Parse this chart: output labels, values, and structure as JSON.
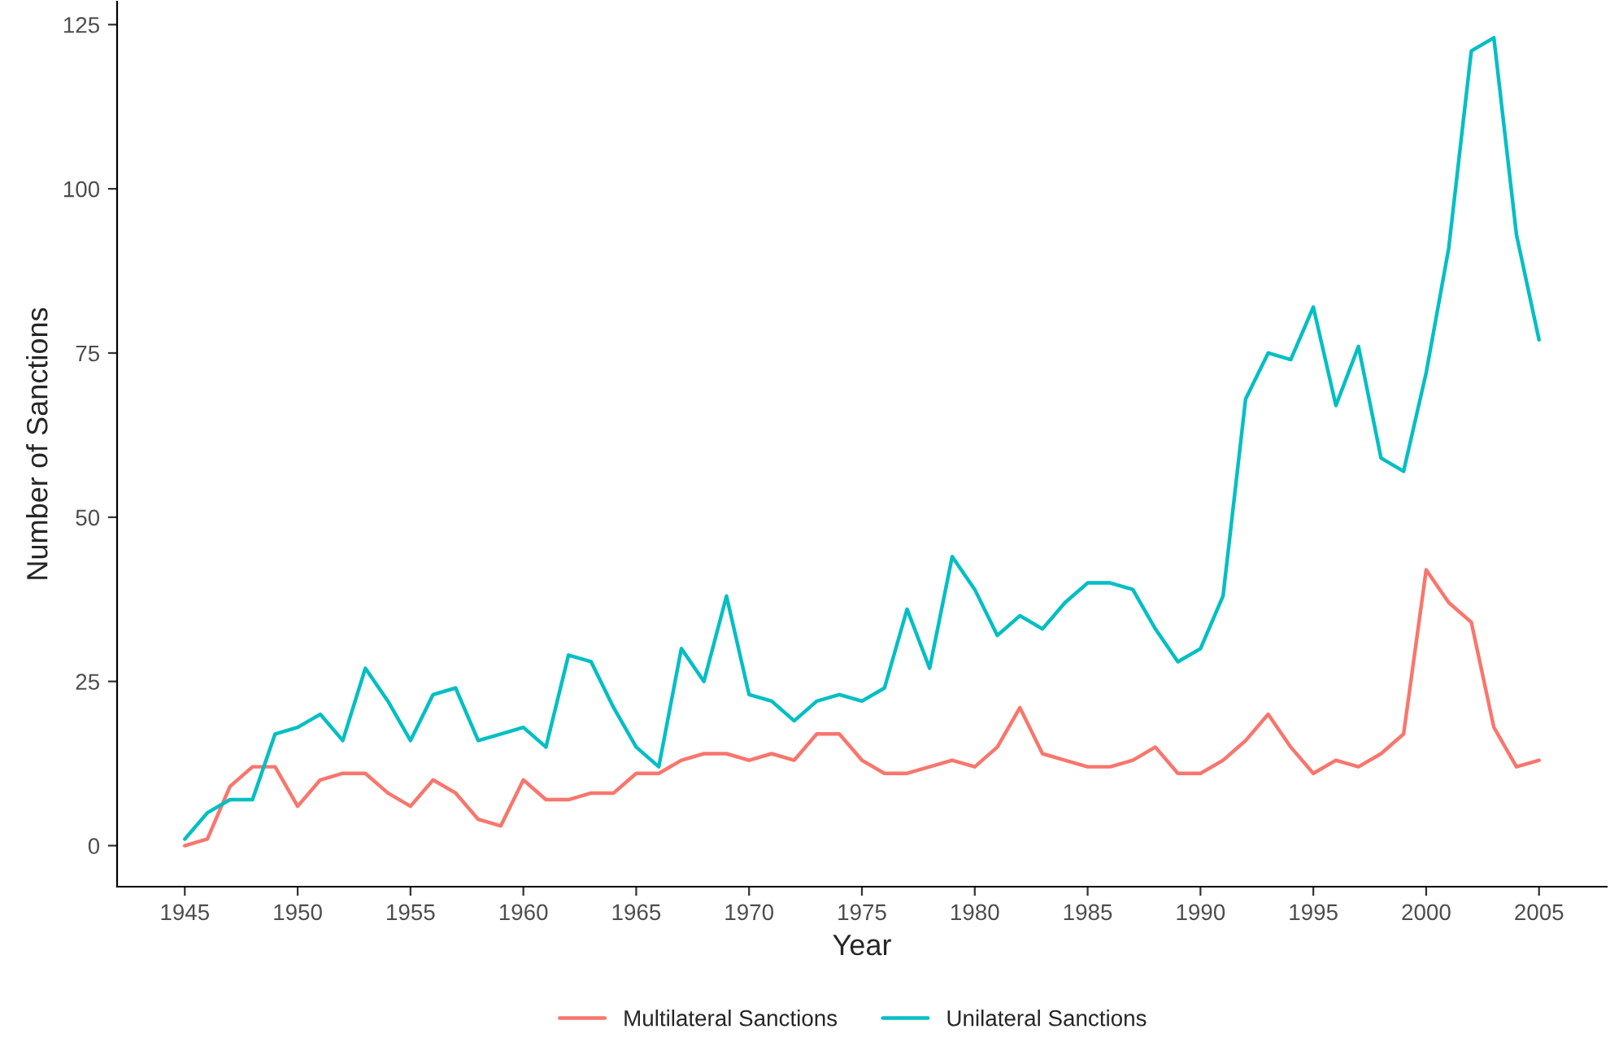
{
  "chart_data": {
    "type": "line",
    "xlabel": "Year",
    "ylabel": "Number of Sanctions",
    "x": [
      1945,
      1946,
      1947,
      1948,
      1949,
      1950,
      1951,
      1952,
      1953,
      1954,
      1955,
      1956,
      1957,
      1958,
      1959,
      1960,
      1961,
      1962,
      1963,
      1964,
      1965,
      1966,
      1967,
      1968,
      1969,
      1970,
      1971,
      1972,
      1973,
      1974,
      1975,
      1976,
      1977,
      1978,
      1979,
      1980,
      1981,
      1982,
      1983,
      1984,
      1985,
      1986,
      1987,
      1988,
      1989,
      1990,
      1991,
      1992,
      1993,
      1994,
      1995,
      1996,
      1997,
      1998,
      1999,
      2000,
      2001,
      2002,
      2003,
      2004,
      2005
    ],
    "series": [
      {
        "name": "Multilateral Sanctions",
        "color": "#f8766d",
        "values": [
          0,
          1,
          9,
          12,
          12,
          6,
          10,
          11,
          11,
          8,
          6,
          10,
          8,
          4,
          3,
          10,
          7,
          7,
          8,
          8,
          11,
          11,
          13,
          14,
          14,
          13,
          14,
          13,
          17,
          17,
          13,
          11,
          11,
          12,
          13,
          12,
          15,
          21,
          14,
          13,
          12,
          12,
          13,
          15,
          11,
          11,
          13,
          16,
          20,
          15,
          11,
          13,
          12,
          14,
          17,
          42,
          37,
          34,
          18,
          12,
          13
        ]
      },
      {
        "name": "Unilateral Sanctions",
        "color": "#00bfc4",
        "values": [
          1,
          5,
          7,
          7,
          17,
          18,
          20,
          16,
          27,
          22,
          16,
          23,
          24,
          16,
          17,
          18,
          15,
          29,
          28,
          21,
          15,
          12,
          30,
          25,
          38,
          23,
          22,
          19,
          22,
          23,
          22,
          24,
          36,
          27,
          44,
          39,
          32,
          35,
          33,
          37,
          40,
          40,
          39,
          33,
          28,
          30,
          38,
          68,
          75,
          74,
          82,
          67,
          76,
          59,
          57,
          72,
          91,
          121,
          123,
          93,
          77
        ]
      }
    ],
    "xlim": [
      1942,
      2008
    ],
    "xticks": [
      1945,
      1950,
      1955,
      1960,
      1965,
      1970,
      1975,
      1980,
      1985,
      1990,
      1995,
      2000,
      2005
    ],
    "ylim": [
      -6.25,
      128.5
    ],
    "yticks": [
      0,
      25,
      50,
      75,
      100,
      125
    ],
    "grid": false,
    "legend": "bottom",
    "line_style": "solid",
    "marker": "none"
  }
}
